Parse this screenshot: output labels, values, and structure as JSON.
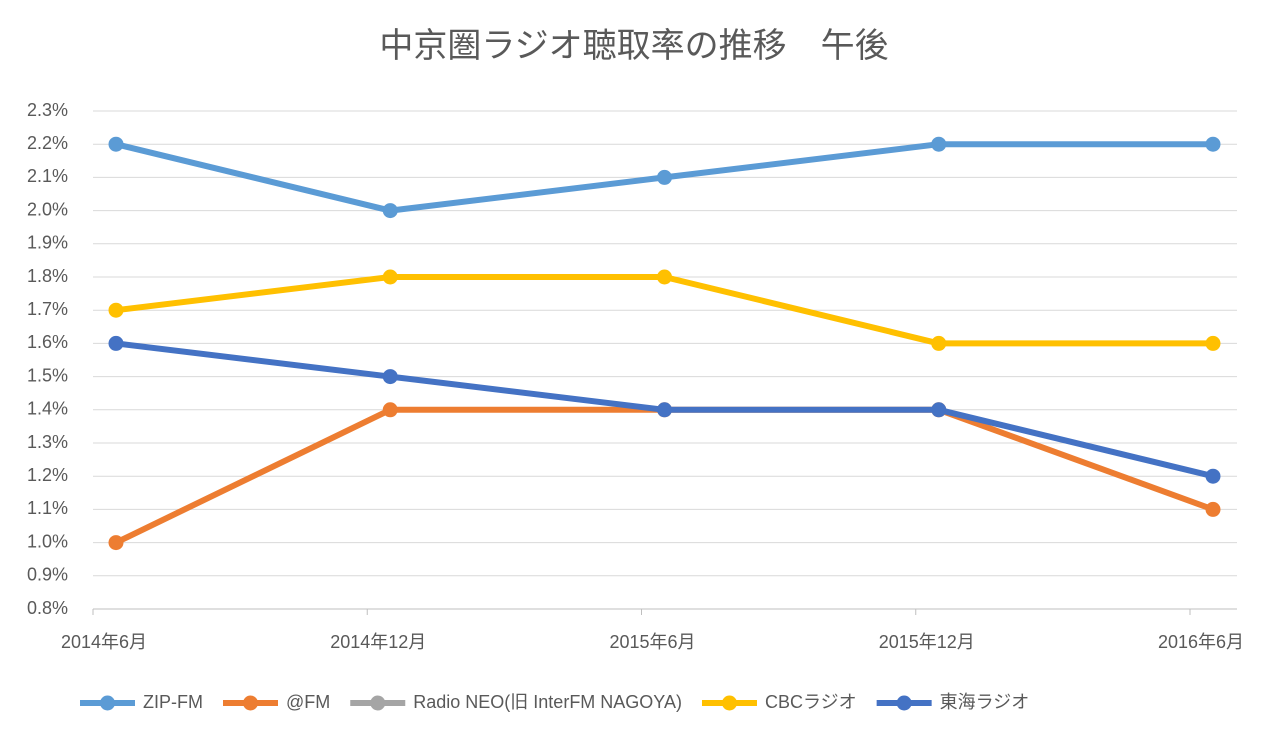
{
  "chart_data": {
    "type": "line",
    "title": "中京圏ラジオ聴取率の推移　午後",
    "categories": [
      "2014年6月",
      "2014年12月",
      "2015年6月",
      "2015年12月",
      "2016年6月"
    ],
    "series": [
      {
        "name": "ZIP-FM",
        "color": "#5b9bd5",
        "values": [
          2.2,
          2.0,
          2.1,
          2.2,
          2.2
        ]
      },
      {
        "name": "@FM",
        "color": "#ed7d31",
        "values": [
          1.0,
          1.4,
          1.4,
          1.4,
          1.1
        ]
      },
      {
        "name": "Radio NEO(旧 InterFM NAGOYA)",
        "color": "#a5a5a5",
        "values": [
          null,
          null,
          null,
          null,
          null
        ]
      },
      {
        "name": "CBCラジオ",
        "color": "#ffc000",
        "values": [
          1.7,
          1.8,
          1.8,
          1.6,
          1.6
        ]
      },
      {
        "name": "東海ラジオ",
        "color": "#4472c4",
        "values": [
          1.6,
          1.5,
          1.4,
          1.4,
          1.2
        ]
      }
    ],
    "ylim": [
      0.8,
      2.3
    ],
    "yticks": [
      {
        "value": 0.8,
        "label": "0.8%"
      },
      {
        "value": 0.9,
        "label": "0.9%"
      },
      {
        "value": 1.0,
        "label": "1.0%"
      },
      {
        "value": 1.1,
        "label": "1.1%"
      },
      {
        "value": 1.2,
        "label": "1.2%"
      },
      {
        "value": 1.3,
        "label": "1.3%"
      },
      {
        "value": 1.4,
        "label": "1.4%"
      },
      {
        "value": 1.5,
        "label": "1.5%"
      },
      {
        "value": 1.6,
        "label": "1.6%"
      },
      {
        "value": 1.7,
        "label": "1.7%"
      },
      {
        "value": 1.8,
        "label": "1.8%"
      },
      {
        "value": 1.9,
        "label": "1.9%"
      },
      {
        "value": 2.0,
        "label": "2.0%"
      },
      {
        "value": 2.1,
        "label": "2.1%"
      },
      {
        "value": 2.2,
        "label": "2.2%"
      },
      {
        "value": 2.3,
        "label": "2.3%"
      }
    ],
    "grid": true,
    "legend": "bottom"
  }
}
